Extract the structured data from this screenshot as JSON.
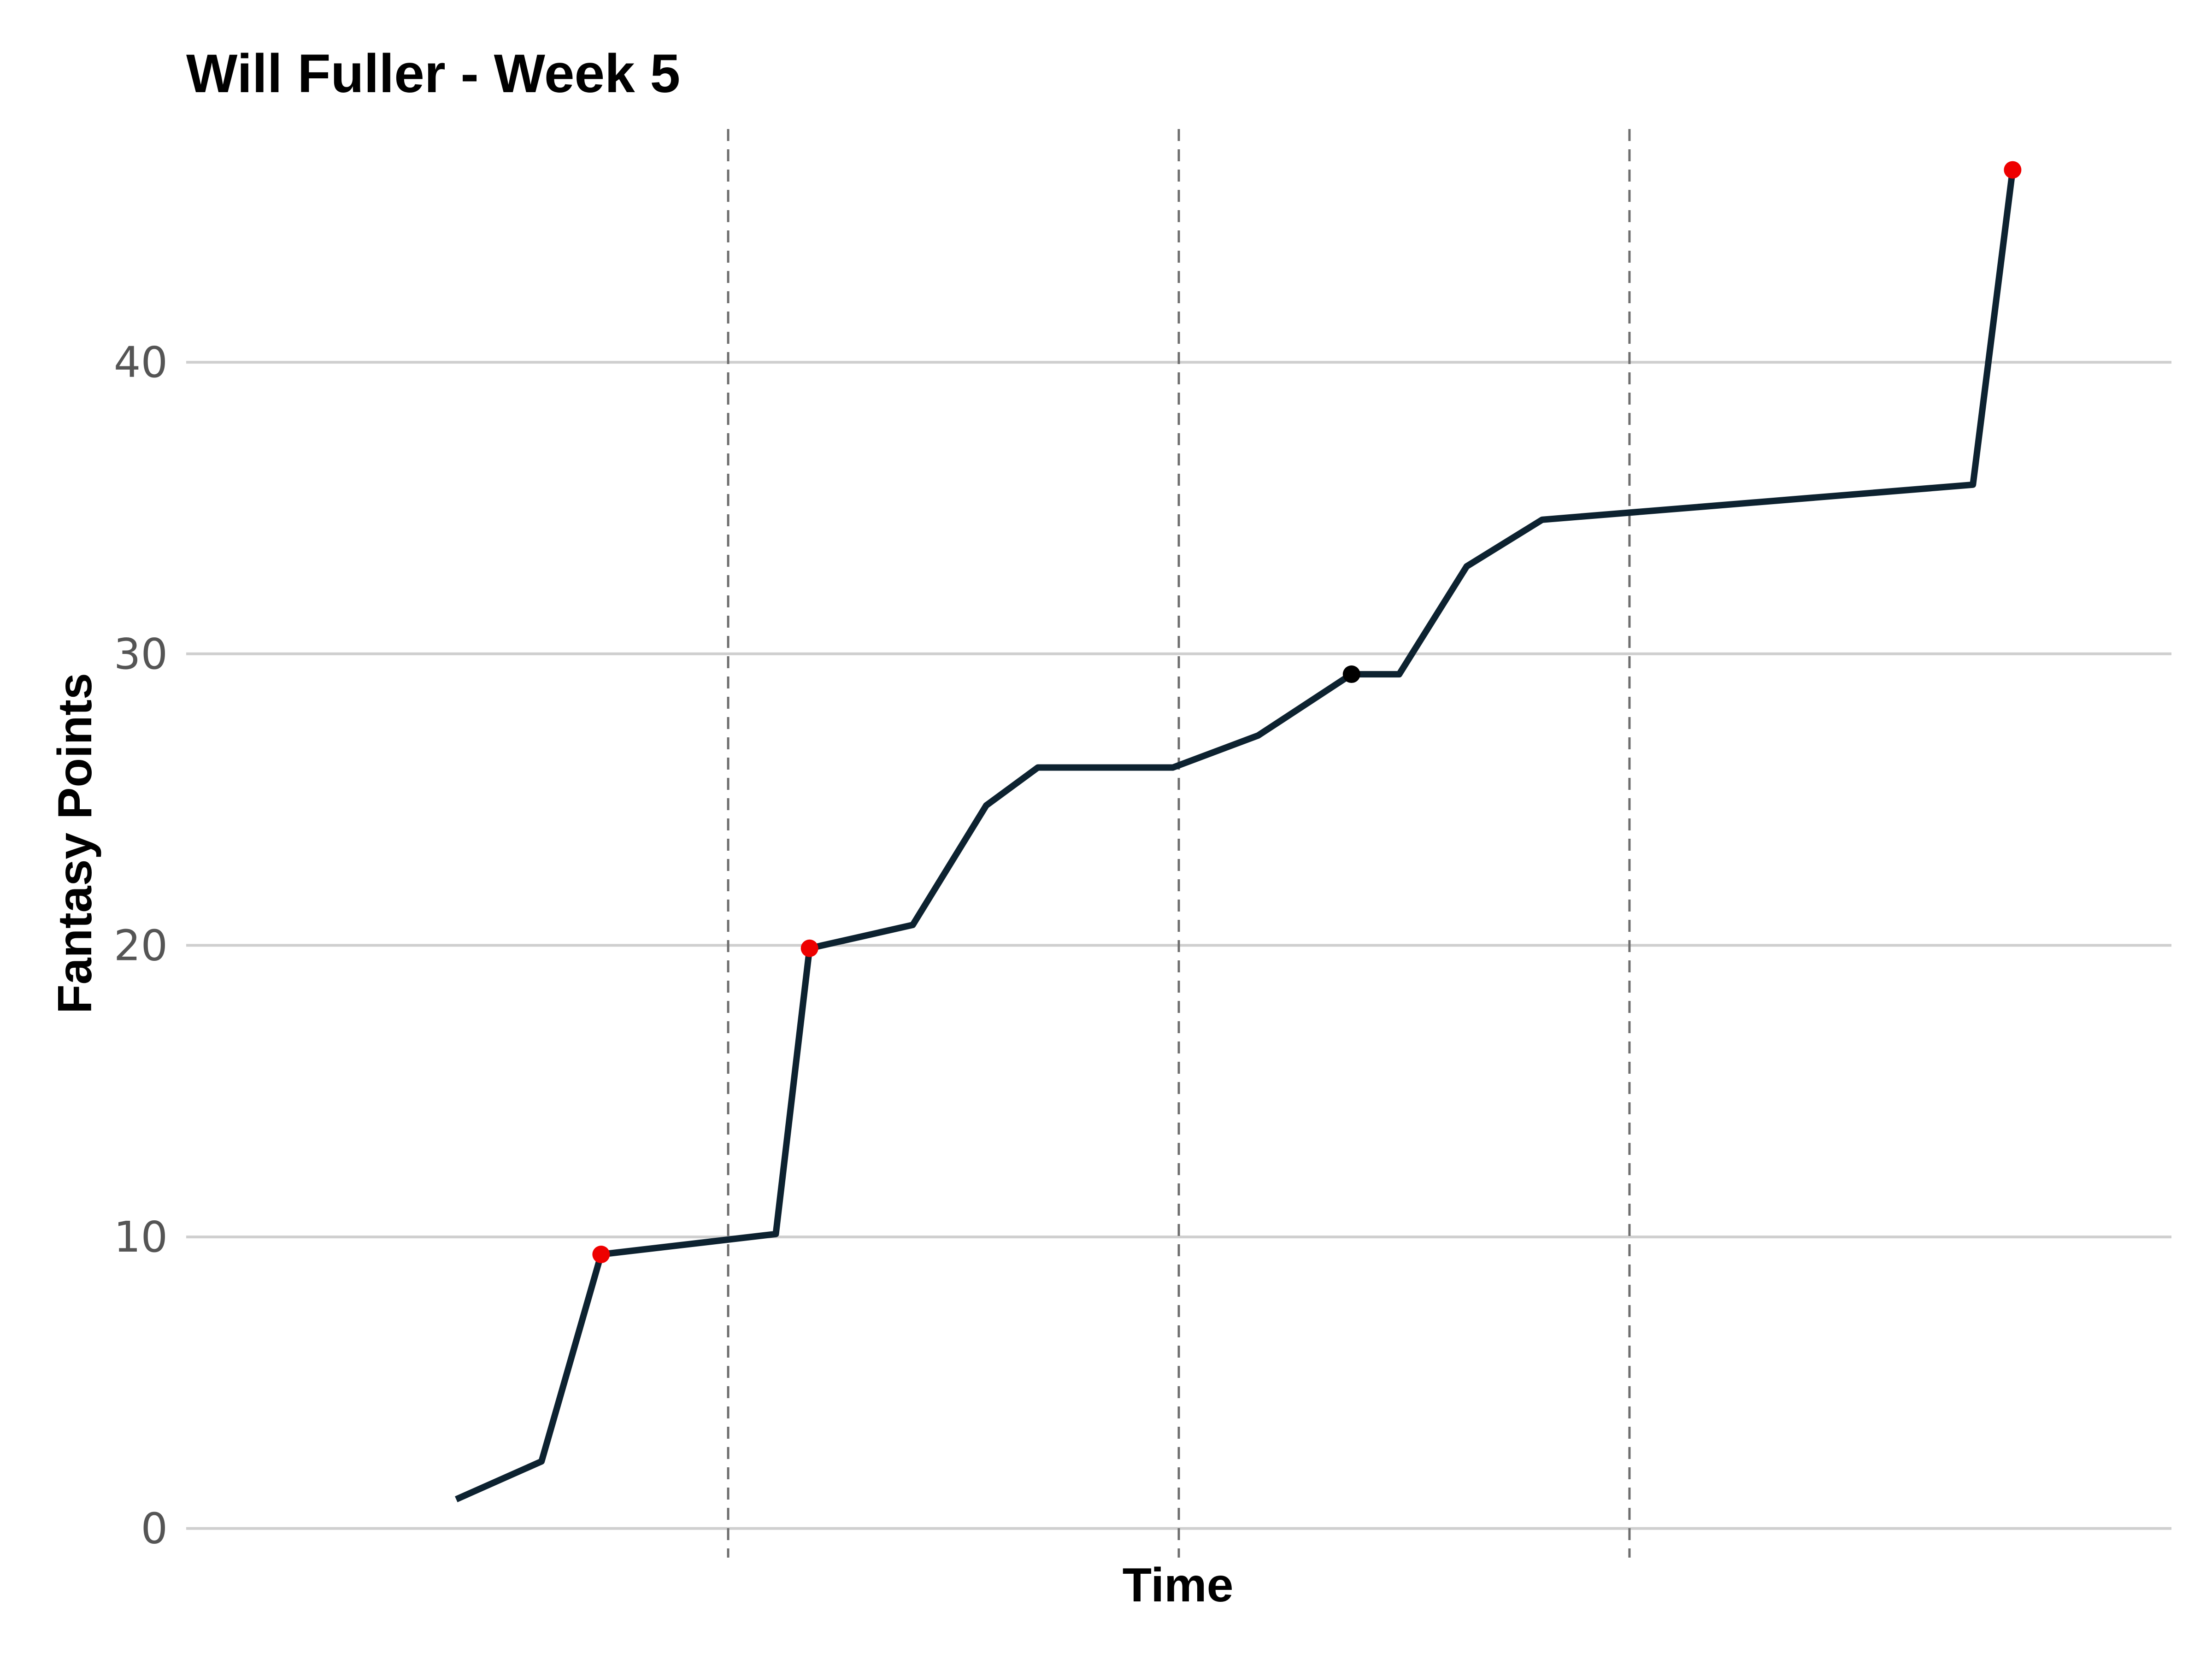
{
  "chart_data": {
    "type": "line",
    "title": "Will Fuller - Week 5",
    "xlabel": "Time",
    "ylabel": "Fantasy Points",
    "ylim": [
      -1,
      48
    ],
    "xlim": [
      0,
      100
    ],
    "y_ticks": [
      "0",
      "10",
      "20",
      "30",
      "40"
    ],
    "y_tick_values": [
      0,
      10,
      20,
      30,
      40
    ],
    "grid": "horizontal",
    "legend": "none",
    "x_tick_labels_visible": false,
    "quarter_dividers_x": [
      27.3,
      50.0,
      72.7
    ],
    "series": [
      {
        "color": "#0d2230",
        "points": [
          {
            "x": 13.6,
            "y": 1.0
          },
          {
            "x": 17.9,
            "y": 2.3
          },
          {
            "x": 20.9,
            "y": 9.4
          },
          {
            "x": 29.7,
            "y": 10.1
          },
          {
            "x": 31.4,
            "y": 19.9
          },
          {
            "x": 36.6,
            "y": 20.7
          },
          {
            "x": 40.3,
            "y": 24.8
          },
          {
            "x": 42.9,
            "y": 26.1
          },
          {
            "x": 49.7,
            "y": 26.1
          },
          {
            "x": 54.0,
            "y": 27.2
          },
          {
            "x": 58.7,
            "y": 29.3
          },
          {
            "x": 61.1,
            "y": 29.3
          },
          {
            "x": 64.5,
            "y": 33.0
          },
          {
            "x": 68.3,
            "y": 34.6
          },
          {
            "x": 90.0,
            "y": 35.8
          },
          {
            "x": 92.0,
            "y": 46.6
          }
        ]
      }
    ],
    "markers": [
      {
        "x": 20.9,
        "y": 9.4,
        "color": "#ee0000"
      },
      {
        "x": 31.4,
        "y": 19.9,
        "color": "#ee0000"
      },
      {
        "x": 58.7,
        "y": 29.3,
        "color": "#000000"
      },
      {
        "x": 92.0,
        "y": 46.6,
        "color": "#ee0000"
      }
    ]
  }
}
